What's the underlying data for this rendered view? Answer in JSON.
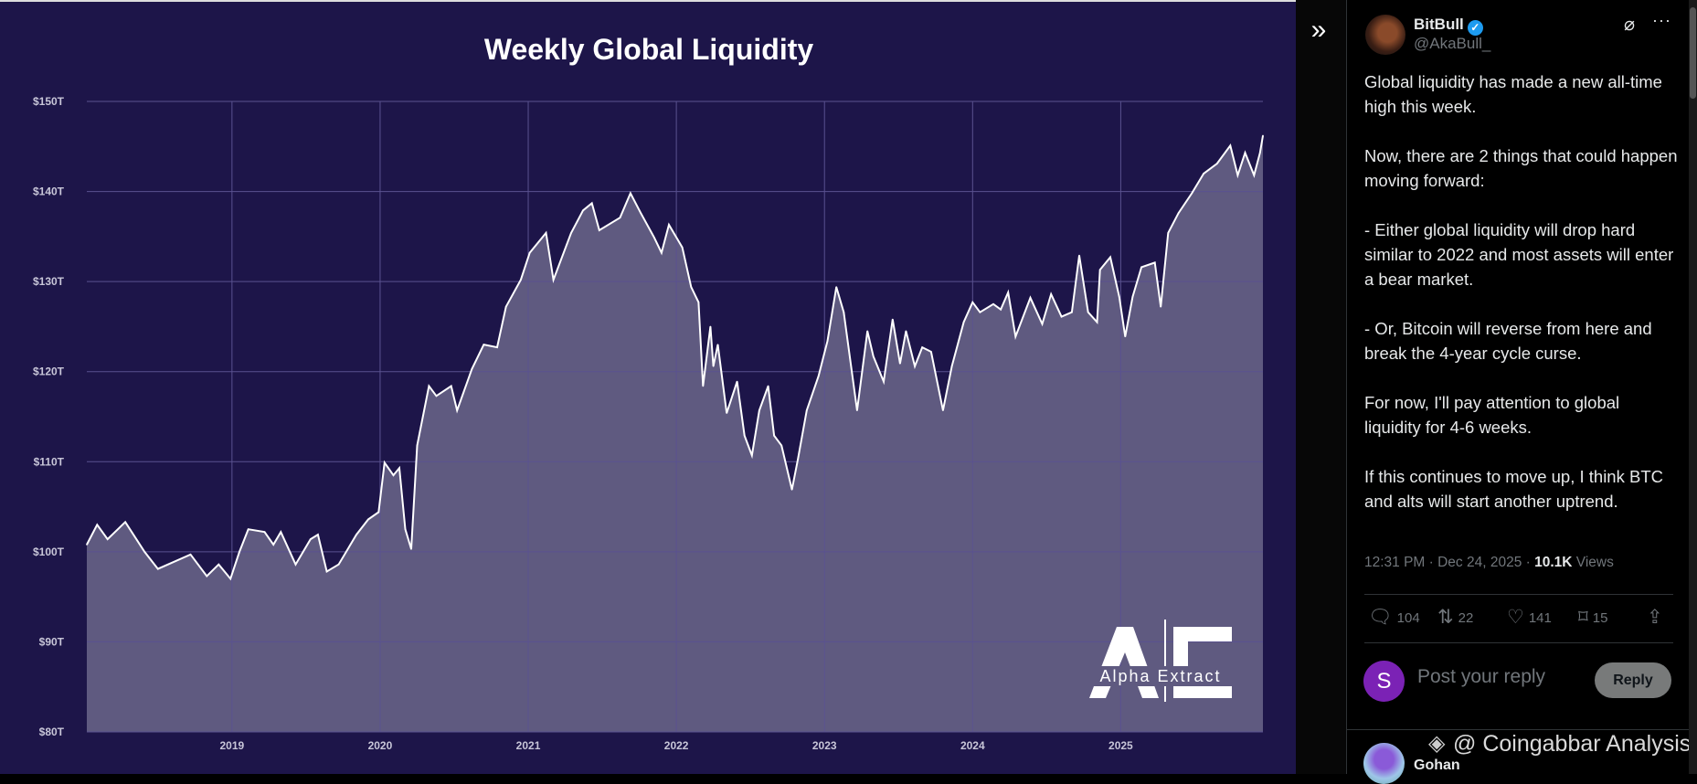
{
  "chart_data": {
    "type": "area",
    "title": "Weekly Global Liquidity",
    "xlabel": "",
    "ylabel": "",
    "xlim": [
      2018.02,
      2025.96
    ],
    "ylim": [
      80,
      150
    ],
    "x_ticks": [
      2019,
      2020,
      2021,
      2022,
      2023,
      2024,
      2025
    ],
    "x_tick_labels": [
      "2019",
      "2020",
      "2021",
      "2022",
      "2023",
      "2024",
      "2025"
    ],
    "y_ticks": [
      80,
      90,
      100,
      110,
      120,
      130,
      140,
      150
    ],
    "y_tick_labels": [
      "$80T",
      "$90T",
      "$100T",
      "$110T",
      "$120T",
      "$130T",
      "$140T",
      "$150T"
    ],
    "grid": true,
    "legend": "none",
    "colors": {
      "background": "#1d1549",
      "fill": "#5f5a80",
      "line": "#ffffff",
      "grid": "#5a5290"
    },
    "x": [
      2018.02,
      2018.09,
      2018.16,
      2018.28,
      2018.41,
      2018.5,
      2018.72,
      2018.83,
      2018.91,
      2018.99,
      2019.05,
      2019.11,
      2019.22,
      2019.28,
      2019.33,
      2019.43,
      2019.53,
      2019.58,
      2019.64,
      2019.72,
      2019.84,
      2019.92,
      2019.99,
      2020.03,
      2020.09,
      2020.13,
      2020.17,
      2020.21,
      2020.25,
      2020.33,
      2020.38,
      2020.48,
      2020.52,
      2020.62,
      2020.7,
      2020.79,
      2020.85,
      2020.95,
      2021.01,
      2021.12,
      2021.17,
      2021.29,
      2021.37,
      2021.43,
      2021.48,
      2021.62,
      2021.69,
      2021.76,
      2021.85,
      2021.9,
      2021.95,
      2022.04,
      2022.1,
      2022.15,
      2022.18,
      2022.23,
      2022.25,
      2022.28,
      2022.34,
      2022.41,
      2022.46,
      2022.51,
      2022.56,
      2022.62,
      2022.66,
      2022.71,
      2022.78,
      2022.82,
      2022.88,
      2022.96,
      2023.02,
      2023.08,
      2023.13,
      2023.22,
      2023.29,
      2023.33,
      2023.4,
      2023.46,
      2023.51,
      2023.55,
      2023.61,
      2023.66,
      2023.72,
      2023.8,
      2023.86,
      2023.94,
      2024.0,
      2024.05,
      2024.14,
      2024.19,
      2024.24,
      2024.29,
      2024.39,
      2024.47,
      2024.53,
      2024.6,
      2024.67,
      2024.72,
      2024.78,
      2024.84,
      2024.86,
      2024.93,
      2024.99,
      2025.03,
      2025.08,
      2025.14,
      2025.23,
      2025.27,
      2025.32,
      2025.39,
      2025.48,
      2025.56,
      2025.65,
      2025.74,
      2025.79,
      2025.84,
      2025.9,
      2025.94,
      2025.96
    ],
    "values": [
      100.8,
      103.0,
      101.4,
      103.3,
      100.0,
      98.1,
      99.7,
      97.3,
      98.6,
      97.0,
      100.0,
      102.5,
      102.2,
      100.8,
      102.2,
      98.6,
      101.4,
      101.9,
      97.8,
      98.6,
      101.9,
      103.6,
      104.4,
      109.9,
      108.5,
      109.3,
      102.5,
      100.3,
      111.8,
      118.4,
      117.3,
      118.4,
      115.7,
      120.3,
      123.0,
      122.7,
      127.2,
      130.2,
      133.2,
      135.4,
      130.2,
      135.4,
      137.9,
      138.7,
      135.7,
      137.1,
      139.8,
      137.6,
      134.9,
      133.2,
      136.3,
      133.8,
      129.4,
      127.7,
      118.4,
      125.0,
      120.6,
      123.0,
      115.4,
      118.9,
      112.9,
      110.7,
      115.7,
      118.4,
      112.9,
      111.8,
      106.9,
      110.2,
      115.7,
      119.5,
      123.4,
      129.4,
      126.6,
      115.7,
      124.5,
      121.7,
      118.9,
      125.8,
      120.9,
      124.5,
      120.6,
      122.7,
      122.2,
      115.7,
      120.6,
      125.5,
      127.7,
      126.6,
      127.5,
      126.9,
      128.8,
      123.9,
      128.2,
      125.3,
      128.6,
      126.1,
      126.6,
      132.9,
      126.6,
      125.5,
      131.3,
      132.7,
      128.3,
      123.9,
      128.3,
      131.6,
      132.1,
      127.2,
      135.4,
      137.6,
      139.8,
      142.0,
      143.1,
      145.1,
      141.8,
      144.3,
      141.8,
      144.3,
      146.2
    ],
    "logo_text": "Alpha Extract"
  },
  "panel": {
    "collapse_icon": "double-chevron-right-icon"
  },
  "tweet": {
    "author_name": "BitBull",
    "author_handle": "@AkaBull_",
    "verified_color": "#1d9bf0",
    "paragraphs": [
      "Global liquidity has made a new all-time high this week.",
      "Now, there are 2 things that could happen moving forward:",
      "- Either global liquidity will drop hard similar to 2022 and most assets will enter a bear market.",
      "- Or, Bitcoin will reverse from here and break the 4-year cycle curse.",
      "For now, I'll pay attention to global liquidity for 4-6 weeks.",
      "If this continues to move up, I think BTC and alts will start another uptrend."
    ],
    "time": "12:31 PM · Dec 24, 2025 · ",
    "views_count": "10.1K",
    "views_label": " Views",
    "stats": {
      "replies": "104",
      "reposts": "22",
      "likes": "141",
      "bookmarks": "15"
    },
    "reply_avatar_letter": "S",
    "reply_avatar_color": "#7b22b5",
    "reply_placeholder": "Post your reply",
    "reply_button": "Reply",
    "next_reply_name": "Gohan"
  },
  "watermark": "@ Coingabbar Analysis"
}
